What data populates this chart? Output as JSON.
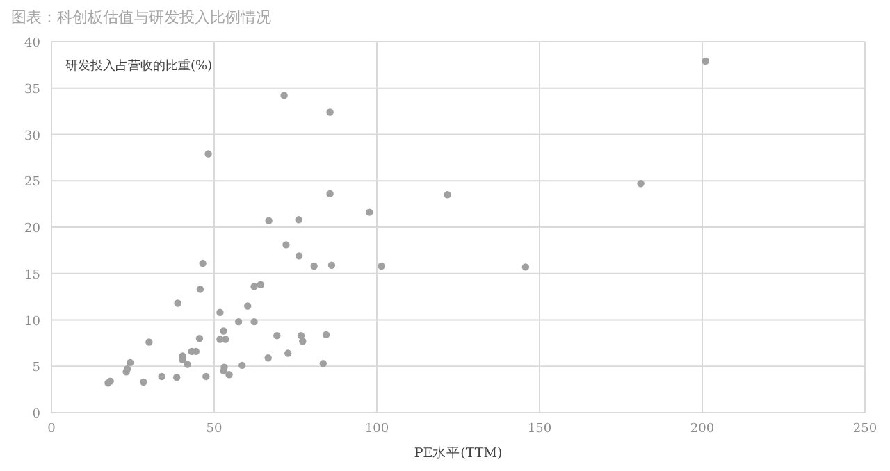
{
  "chart_data": {
    "type": "scatter",
    "title": "图表：科创板估值与研发投入比例情况",
    "xlabel": "PE水平(TTM)",
    "ylabel": "研发投入占营收的比重(%)",
    "xlim": [
      0,
      250
    ],
    "xticks": [
      0,
      50,
      100,
      150,
      200,
      250
    ],
    "ylim": [
      0,
      40
    ],
    "yticks": [
      0,
      5,
      10,
      15,
      20,
      25,
      30,
      35,
      40
    ],
    "grid": true,
    "marker": "circle",
    "series": [
      {
        "color": "#a0a0a0",
        "x": [
          17.4,
          18.1,
          23.0,
          23.3,
          24.2,
          28.3,
          30.0,
          33.9,
          38.5,
          38.8,
          40.3,
          40.3,
          41.8,
          43.1,
          44.4,
          45.5,
          45.7,
          46.5,
          47.5,
          48.2,
          51.8,
          51.8,
          52.9,
          53.5,
          53.1,
          52.9,
          54.6,
          57.5,
          58.6,
          60.3,
          62.3,
          62.3,
          64.3,
          66.6,
          66.8,
          69.3,
          71.5,
          72.1,
          72.7,
          76.0,
          76.1,
          76.7,
          77.2,
          80.7,
          83.5,
          84.4,
          85.6,
          85.6,
          86.1,
          97.7,
          101.4,
          121.7,
          145.7,
          181.1,
          201.0
        ],
        "values": [
          3.2,
          3.4,
          4.4,
          4.7,
          5.4,
          3.3,
          7.6,
          3.9,
          3.8,
          11.8,
          6.1,
          5.7,
          5.2,
          6.6,
          6.6,
          8.0,
          13.3,
          16.1,
          3.9,
          27.9,
          10.8,
          7.9,
          8.8,
          7.9,
          4.9,
          4.5,
          4.1,
          9.8,
          5.1,
          11.5,
          13.6,
          9.8,
          13.8,
          5.9,
          20.7,
          8.3,
          34.2,
          18.1,
          6.4,
          20.8,
          16.9,
          8.3,
          7.7,
          15.8,
          5.3,
          8.4,
          32.4,
          23.6,
          15.9,
          21.6,
          15.8,
          23.5,
          15.7,
          24.7,
          37.9
        ]
      }
    ]
  }
}
